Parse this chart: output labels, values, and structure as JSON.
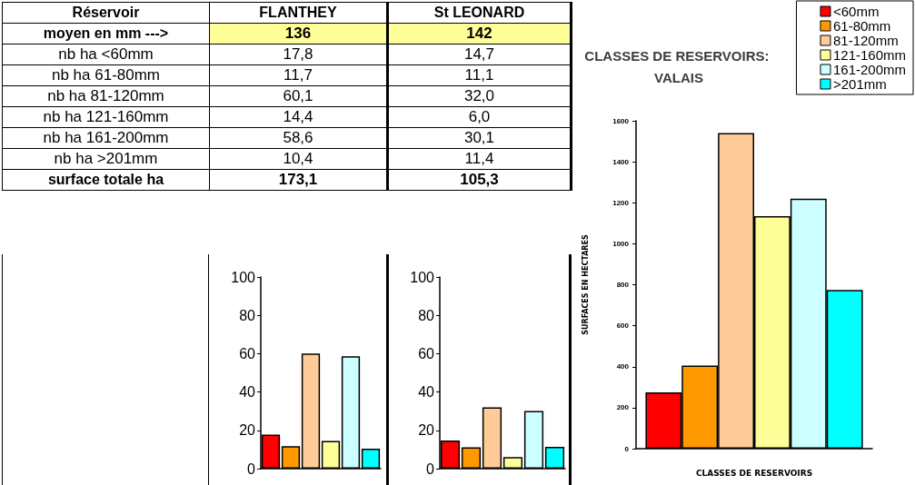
{
  "chart_data": [
    {
      "type": "other",
      "categories": [
        "Réservoir",
        "FLANTHEY",
        "St LEONARD"
      ],
      "y_categories": [
        "moyen en mm --->",
        "nb ha <60mm",
        "nb ha 61-80mm",
        "nb ha 81-120mm",
        "nb ha 121-160mm",
        "nb ha 161-200mm",
        "nb ha >201mm",
        "surface totale ha"
      ],
      "cell_labels": [
        [
          "136",
          "142"
        ],
        [
          "17,8",
          "14,7"
        ],
        [
          "11,7",
          "11,1"
        ],
        [
          "60,1",
          "32,0"
        ],
        [
          "14,4",
          "6,0"
        ],
        [
          "58,6",
          "30,1"
        ],
        [
          "10,4",
          "11,4"
        ],
        [
          "173,1",
          "105,3"
        ]
      ]
    },
    {
      "type": "bar",
      "categories": [
        null,
        null,
        null,
        null,
        null,
        null
      ],
      "values": [
        17.8,
        11.7,
        60.1,
        14.4,
        58.6,
        10.4
      ],
      "colors": [
        "#ff0000",
        "#ff9900",
        "#ffcc99",
        "#ffff99",
        "#ccffff",
        "#00ffff"
      ],
      "ylim": [
        0,
        100
      ],
      "yticks": [
        0,
        20,
        40,
        60,
        80,
        100
      ],
      "grid": false,
      "legend": false
    },
    {
      "type": "bar",
      "categories": [
        null,
        null,
        null,
        null,
        null,
        null
      ],
      "values": [
        14.7,
        11.1,
        32.0,
        6.0,
        30.1,
        11.4
      ],
      "colors": [
        "#ff0000",
        "#ff9900",
        "#ffcc99",
        "#ffff99",
        "#ccffff",
        "#00ffff"
      ],
      "ylim": [
        0,
        100
      ],
      "yticks": [
        0,
        20,
        40,
        60,
        80,
        100
      ],
      "grid": false,
      "legend": false
    },
    {
      "type": "bar",
      "title": "CLASSES DE RESERVOIRS: VALAIS",
      "xlabel": "CLASSES DE RESERVOIRS",
      "ylabel": "SURFACES EN HECTARES",
      "categories": [
        null
      ],
      "series": [
        {
          "name": "<60mm",
          "color": "#ff0000",
          "values": [
            275
          ]
        },
        {
          "name": "61-80mm",
          "color": "#ff9900",
          "values": [
            405
          ]
        },
        {
          "name": "81-120mm",
          "color": "#ffcc99",
          "values": [
            1540
          ]
        },
        {
          "name": "121-160mm",
          "color": "#ffff99",
          "values": [
            1135
          ]
        },
        {
          "name": "161-200mm",
          "color": "#ccffff",
          "values": [
            1220
          ]
        },
        {
          "name": ">201mm",
          "color": "#00ffff",
          "values": [
            775
          ]
        }
      ],
      "ylim": [
        0,
        1600
      ],
      "yticks": [
        0,
        200,
        400,
        600,
        800,
        1000,
        1200,
        1400,
        1600
      ],
      "grid": false,
      "legend": "top right"
    }
  ]
}
